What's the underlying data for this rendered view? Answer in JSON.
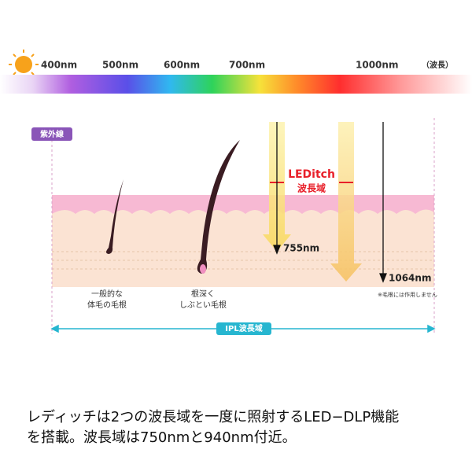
{
  "spectrum": {
    "labels": [
      "400nm",
      "500nm",
      "600nm",
      "700nm",
      "1000nm"
    ],
    "unit_label": "（波長）"
  },
  "diagram": {
    "uv_tag": "紫外線",
    "led_title": "LEDitch",
    "led_subtitle": "波長域",
    "wave_755": "755nm",
    "wave_1064": "1064nm",
    "hair_normal": [
      "一般的な",
      "体毛の毛根"
    ],
    "hair_deep": [
      "根深く",
      "しぶとい毛根"
    ],
    "note": "※毛根には作用しません",
    "ipl_label": "IPL波長域"
  },
  "caption": [
    "レディッチは2つの波長域を一度に照射するLED−DLP機能",
    "を搭載。波長域は750nmと940nm付近。"
  ]
}
